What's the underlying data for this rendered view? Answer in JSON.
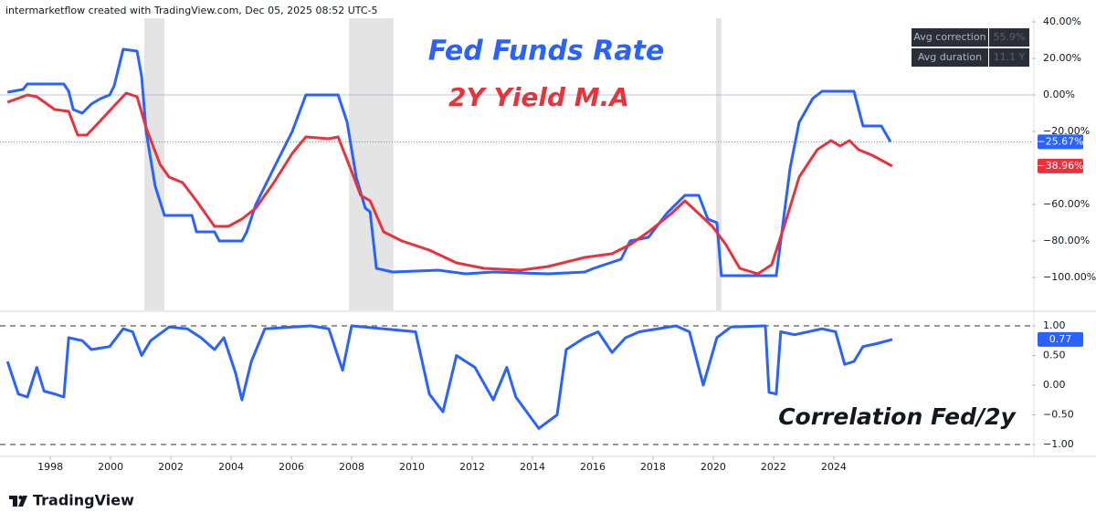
{
  "header": {
    "text": "intermarketflow created with TradingView.com, Dec 05, 2025 08:52 UTC-5"
  },
  "stats": {
    "rows": [
      [
        "Avg correction",
        "55.9%"
      ],
      [
        "Avg duration",
        "11.1 Y"
      ]
    ]
  },
  "footer": {
    "brand": "TradingView"
  },
  "chart_data": [
    {
      "type": "line",
      "xlim": [
        1996.33,
        2030.58
      ],
      "ylim": [
        -118,
        42
      ],
      "yticks": [
        {
          "value": 40,
          "label": "40.00%"
        },
        {
          "value": 20,
          "label": "20.00%"
        },
        {
          "value": 0,
          "label": "0.00%"
        },
        {
          "value": -20,
          "label": "−20.00%"
        },
        {
          "value": -60,
          "label": "−60.00%"
        },
        {
          "value": -80,
          "label": "−80.00%"
        },
        {
          "value": -100,
          "label": "−100.00%"
        }
      ],
      "grid": false,
      "hlines": [
        0
      ],
      "hline_color": "#9fb4dc",
      "hline_dash": false,
      "shaded_ranges": [
        [
          2001.12,
          2001.79
        ],
        [
          2007.91,
          2009.39
        ],
        [
          2020.09,
          2020.27
        ]
      ],
      "shade_color": "#e4e4e4",
      "series": [
        {
          "name": "Fed Funds Rate",
          "color": "#2962ff",
          "last_label": "−25.67%",
          "x": [
            1996.58,
            1997.09,
            1997.24,
            1998.45,
            1998.61,
            1998.76,
            1999.06,
            1999.36,
            1999.67,
            1999.97,
            2000.12,
            2000.42,
            2000.88,
            2001.03,
            2001.18,
            2001.48,
            2001.79,
            2002.7,
            2002.85,
            2003.45,
            2003.61,
            2004.36,
            2004.52,
            2004.82,
            2005.42,
            2006.03,
            2006.48,
            2007.55,
            2007.85,
            2008.15,
            2008.45,
            2008.61,
            2008.82,
            2009.36,
            2010.88,
            2011.79,
            2012.7,
            2014.52,
            2015.73,
            2016.03,
            2016.94,
            2017.24,
            2017.85,
            2018.45,
            2019.06,
            2019.52,
            2019.82,
            2020.12,
            2020.27,
            2021.18,
            2022.09,
            2022.24,
            2022.55,
            2022.85,
            2023.3,
            2023.61,
            2024.67,
            2024.97,
            2025.58,
            2025.88
          ],
          "values": [
            1.5,
            3,
            6,
            6,
            2,
            -8,
            -10,
            -5,
            -2,
            0,
            5,
            25,
            24,
            10,
            -20,
            -50,
            -66,
            -66,
            -75,
            -75,
            -80,
            -80,
            -75,
            -60,
            -40,
            -20,
            0,
            0,
            -15,
            -45,
            -62,
            -64,
            -95,
            -97,
            -96,
            -98,
            -97,
            -98,
            -97,
            -95,
            -90,
            -80,
            -78,
            -65,
            -55,
            -55,
            -68,
            -70,
            -99,
            -99,
            -99,
            -80,
            -40,
            -15,
            -2,
            2,
            2,
            -17,
            -17,
            -25.67
          ]
        },
        {
          "name": "2Y Yield M.A",
          "color": "#e8323c",
          "last_label": "−38.96%",
          "x": [
            1996.58,
            1997.24,
            1997.55,
            1998.15,
            1998.61,
            1998.91,
            1999.21,
            1999.67,
            2000.12,
            2000.52,
            2000.88,
            2001.18,
            2001.64,
            2001.94,
            2002.39,
            2002.85,
            2003.45,
            2003.91,
            2004.36,
            2004.82,
            2005.42,
            2006.03,
            2006.48,
            2007.24,
            2007.55,
            2008.0,
            2008.3,
            2008.61,
            2009.06,
            2009.67,
            2010.58,
            2011.48,
            2012.39,
            2013.61,
            2014.52,
            2015.73,
            2016.64,
            2017.24,
            2017.85,
            2018.61,
            2019.06,
            2019.52,
            2019.97,
            2020.42,
            2020.88,
            2021.48,
            2021.94,
            2022.39,
            2022.85,
            2023.45,
            2023.91,
            2024.21,
            2024.52,
            2024.82,
            2025.27,
            2025.94
          ],
          "values": [
            -4,
            0,
            -1,
            -8,
            -9,
            -22,
            -22,
            -14,
            -6,
            1,
            -1,
            -18,
            -38,
            -45,
            -48,
            -58,
            -72,
            -72,
            -68,
            -62,
            -48,
            -32,
            -23,
            -24,
            -23,
            -42,
            -55,
            -58,
            -75,
            -80,
            -85,
            -92,
            -95,
            -96,
            -94,
            -89,
            -87,
            -82,
            -75,
            -65,
            -58,
            -65,
            -72,
            -82,
            -95,
            -98,
            -93,
            -70,
            -45,
            -30,
            -25,
            -28,
            -25,
            -30,
            -33,
            -38.96
          ]
        }
      ]
    },
    {
      "type": "line",
      "xlim": [
        1996.33,
        2030.58
      ],
      "ylim": [
        -1.2,
        1.23
      ],
      "yticks": [
        {
          "value": 1,
          "label": "1.00"
        },
        {
          "value": 0.5,
          "label": "0.50"
        },
        {
          "value": 0,
          "label": "0.00"
        },
        {
          "value": -0.5,
          "label": "−0.50"
        },
        {
          "value": -1,
          "label": "−1.00"
        }
      ],
      "xticks": [
        1998,
        2000,
        2002,
        2004,
        2006,
        2008,
        2010,
        2012,
        2014,
        2016,
        2018,
        2020,
        2022,
        2024
      ],
      "grid": false,
      "hlines": [
        1,
        -1
      ],
      "hline_color": "#777777",
      "hline_dash": true,
      "series": [
        {
          "name": "Correlation Fed/2y",
          "color": "#2962ff",
          "last_label": "0.77",
          "x": [
            1996.58,
            1996.94,
            1997.24,
            1997.55,
            1997.79,
            1998.15,
            1998.45,
            1998.61,
            1999.06,
            1999.36,
            1999.97,
            2000.42,
            2000.73,
            2001.03,
            2001.33,
            2001.94,
            2002.55,
            2003.0,
            2003.45,
            2003.76,
            2004.15,
            2004.36,
            2004.67,
            2005.12,
            2006.64,
            2007.24,
            2007.7,
            2008.0,
            2009.06,
            2010.12,
            2010.58,
            2011.03,
            2011.48,
            2012.09,
            2012.7,
            2013.15,
            2013.45,
            2014.21,
            2014.82,
            2015.12,
            2015.73,
            2016.18,
            2016.64,
            2017.09,
            2017.55,
            2018.76,
            2019.21,
            2019.67,
            2020.12,
            2020.58,
            2021.73,
            2021.85,
            2022.09,
            2022.24,
            2022.7,
            2023.61,
            2024.06,
            2024.36,
            2024.67,
            2024.97,
            2025.42,
            2025.94
          ],
          "values": [
            0.4,
            -0.15,
            -0.2,
            0.3,
            -0.1,
            -0.15,
            -0.2,
            0.8,
            0.75,
            0.6,
            0.65,
            0.95,
            0.9,
            0.5,
            0.75,
            0.98,
            0.95,
            0.8,
            0.6,
            0.8,
            0.2,
            -0.25,
            0.4,
            0.95,
            1,
            0.95,
            0.25,
            1,
            0.95,
            0.9,
            -0.15,
            -0.45,
            0.5,
            0.3,
            -0.25,
            0.3,
            -0.2,
            -0.73,
            -0.5,
            0.6,
            0.8,
            0.9,
            0.55,
            0.8,
            0.9,
            1,
            0.9,
            0,
            0.8,
            0.98,
            1,
            -0.12,
            -0.15,
            0.9,
            0.85,
            0.95,
            0.9,
            0.35,
            0.4,
            0.65,
            0.7,
            0.77
          ]
        }
      ]
    }
  ]
}
